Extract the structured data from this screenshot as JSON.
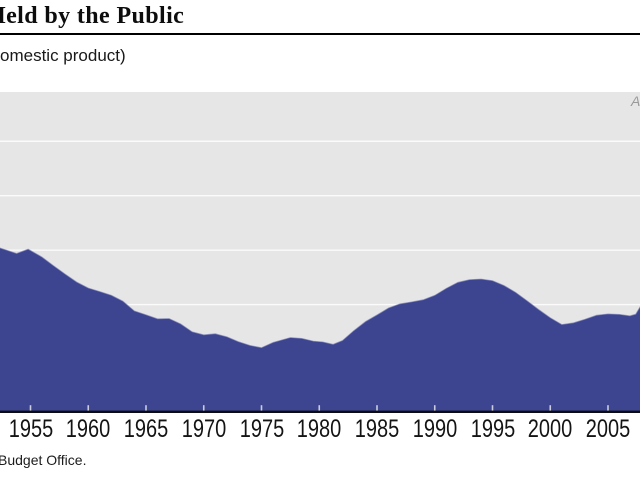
{
  "header": {
    "title": "Held by the Public",
    "subtitle": "omestic product)"
  },
  "plot": {
    "actual_label": "Actual"
  },
  "footer": {
    "source": "Budget Office."
  },
  "chart_data": {
    "type": "area",
    "title_visible": "Held by the Public",
    "subtitle_visible": "omestic product)",
    "annotation_visible": "Actual",
    "source_visible": "Budget Office.",
    "x_tick_labels": [
      "1955",
      "1960",
      "1965",
      "1970",
      "1975",
      "1980",
      "1985",
      "1990",
      "1995",
      "2000",
      "2005"
    ],
    "x_tick_years": [
      1955,
      1960,
      1965,
      1970,
      1975,
      1980,
      1985,
      1990,
      1995,
      2000,
      2005
    ],
    "x_domain": [
      1952.3,
      2008
    ],
    "ylim": [
      0,
      118
    ],
    "y_gridline_values": [
      20,
      40,
      60,
      80,
      100
    ],
    "grid": "horizontal",
    "legend_position": "none",
    "series": [
      {
        "name": "area_series",
        "x": [
          1952.3,
          1953.0,
          1953.8,
          1954.8,
          1956,
          1957,
          1958,
          1959,
          1960,
          1961,
          1962,
          1963,
          1964,
          1965,
          1966,
          1967,
          1968,
          1969,
          1970,
          1971,
          1972,
          1973,
          1974,
          1975,
          1976,
          1977.5,
          1978.5,
          1979.5,
          1980.3,
          1981.2,
          1982,
          1983,
          1984,
          1985,
          1986,
          1987,
          1988,
          1989,
          1990,
          1991,
          1992,
          1993,
          1994,
          1995,
          1996,
          1997,
          1998,
          1999,
          2000,
          2001,
          2002,
          2003,
          2004,
          2005,
          2006,
          2006.9,
          2007.4,
          2008
        ],
        "values": [
          60.9,
          59.9,
          58.8,
          60.4,
          57.5,
          54.3,
          51.2,
          48.3,
          46.1,
          44.8,
          43.4,
          41.3,
          37.7,
          36.3,
          34.8,
          34.9,
          32.9,
          30.0,
          28.9,
          29.3,
          28.2,
          26.4,
          25.0,
          24.2,
          26.1,
          27.9,
          27.6,
          26.6,
          26.3,
          25.4,
          26.8,
          30.5,
          33.8,
          36.2,
          38.8,
          40.3,
          41.0,
          41.8,
          43.4,
          46.0,
          48.2,
          49.2,
          49.4,
          48.8,
          47.0,
          44.5,
          41.4,
          38.2,
          35.2,
          32.7,
          33.3,
          34.6,
          36.1,
          36.6,
          36.4,
          35.9,
          36.5,
          40.8
        ]
      }
    ],
    "colors": {
      "area": "#3e4590",
      "area_top_edge": "#8e94bd",
      "plot_bg": "#e6e6e6",
      "gridline": "#fbfbfb",
      "axis_line": "#0c0c14",
      "tick": "#c9cddf",
      "title": "#0d0d0d",
      "annotation": "#9a9a9a"
    }
  }
}
